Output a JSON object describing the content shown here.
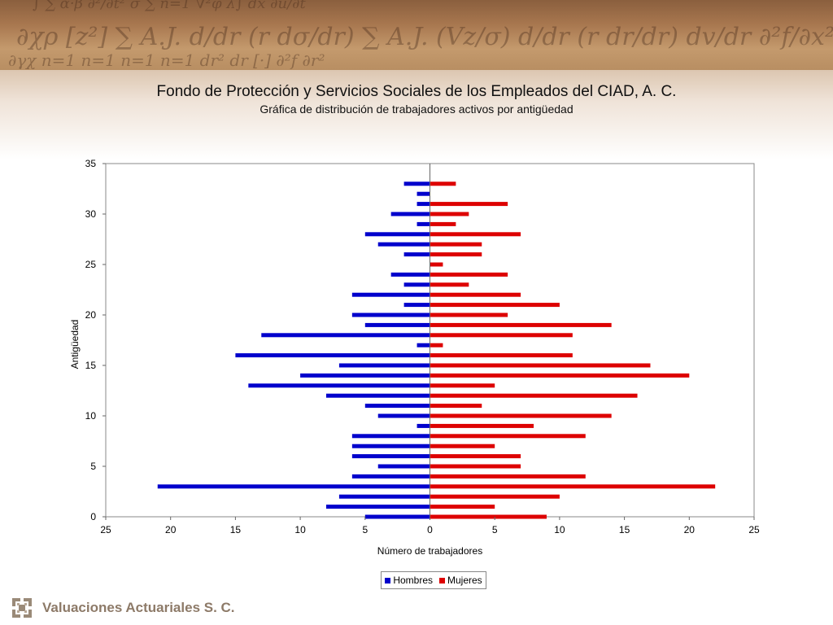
{
  "header": {
    "title": "Fondo de Protección y Servicios Sociales de los Empleados del CIAD, A. C.",
    "subtitle": "Gráfica de distribución de trabajadores activos por antigüedad"
  },
  "chart_data": {
    "type": "bar",
    "orientation": "horizontal-population-pyramid",
    "xlabel": "Número de trabajadores",
    "ylabel": "Antigüedad",
    "xlim": [
      -25,
      25
    ],
    "ylim": [
      0,
      35
    ],
    "x_ticks": [
      -25,
      -20,
      -15,
      -10,
      -5,
      0,
      5,
      10,
      15,
      20,
      25
    ],
    "x_tick_labels": [
      "25",
      "20",
      "15",
      "10",
      "5",
      "0",
      "5",
      "10",
      "15",
      "20",
      "25"
    ],
    "y_ticks": [
      0,
      5,
      10,
      15,
      20,
      25,
      30,
      35
    ],
    "categories": [
      0,
      1,
      2,
      3,
      4,
      5,
      6,
      7,
      8,
      9,
      10,
      11,
      12,
      13,
      14,
      15,
      16,
      17,
      18,
      19,
      20,
      21,
      22,
      23,
      24,
      25,
      26,
      27,
      28,
      29,
      30,
      31,
      32,
      33
    ],
    "series": [
      {
        "name": "Hombres",
        "color": "#0000cc",
        "values": [
          5,
          8,
          7,
          21,
          6,
          4,
          6,
          6,
          6,
          1,
          4,
          5,
          8,
          14,
          10,
          7,
          15,
          1,
          13,
          5,
          6,
          2,
          6,
          2,
          3,
          0,
          2,
          4,
          5,
          1,
          3,
          1,
          1,
          2
        ]
      },
      {
        "name": "Mujeres",
        "color": "#dd0000",
        "values": [
          9,
          5,
          10,
          22,
          12,
          7,
          7,
          5,
          12,
          8,
          14,
          4,
          16,
          5,
          20,
          17,
          11,
          1,
          11,
          14,
          6,
          10,
          7,
          3,
          6,
          1,
          4,
          4,
          7,
          2,
          3,
          6,
          0,
          2
        ]
      }
    ],
    "legend_position": "bottom-center",
    "grid": false
  },
  "footer": {
    "company": "Valuaciones Actuariales S. C.",
    "logo_icon": "company-logo-icon"
  }
}
